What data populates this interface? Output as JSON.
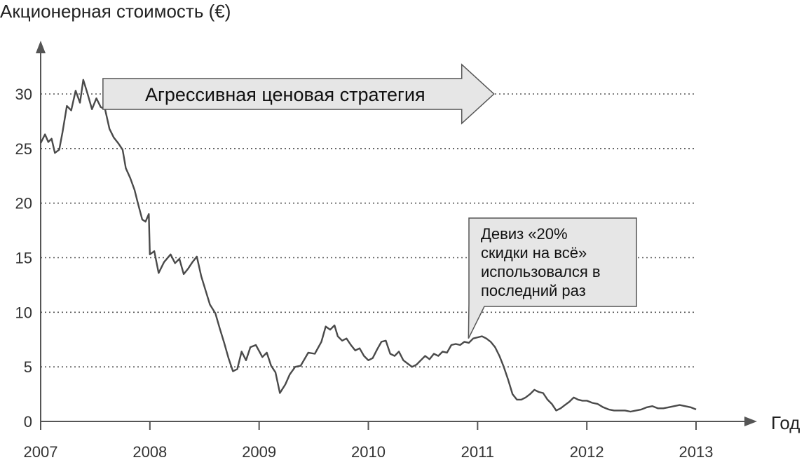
{
  "chart_data": {
    "type": "line",
    "ylabel": "Акционерная стоимость (€)",
    "xlabel": "Год",
    "xlim": [
      2007,
      2013
    ],
    "ylim": [
      0,
      30
    ],
    "y_ticks": [
      0,
      5,
      10,
      15,
      20,
      25,
      30
    ],
    "x_ticks": [
      2007,
      2008,
      2009,
      2010,
      2011,
      2012,
      2013
    ],
    "grid": "horizontal-dotted",
    "series": [
      {
        "values": [
          [
            2007.0,
            25.5
          ],
          [
            2007.04,
            26.3
          ],
          [
            2007.07,
            25.6
          ],
          [
            2007.1,
            25.9
          ],
          [
            2007.13,
            24.6
          ],
          [
            2007.17,
            24.9
          ],
          [
            2007.2,
            26.5
          ],
          [
            2007.24,
            28.9
          ],
          [
            2007.28,
            28.5
          ],
          [
            2007.32,
            30.3
          ],
          [
            2007.36,
            29.2
          ],
          [
            2007.39,
            31.3
          ],
          [
            2007.43,
            30.0
          ],
          [
            2007.47,
            28.6
          ],
          [
            2007.51,
            29.6
          ],
          [
            2007.55,
            28.8
          ],
          [
            2007.59,
            28.6
          ],
          [
            2007.63,
            26.8
          ],
          [
            2007.67,
            26.0
          ],
          [
            2007.71,
            25.5
          ],
          [
            2007.75,
            24.9
          ],
          [
            2007.78,
            23.2
          ],
          [
            2007.82,
            22.3
          ],
          [
            2007.86,
            21.2
          ],
          [
            2007.89,
            20.0
          ],
          [
            2007.93,
            18.5
          ],
          [
            2007.96,
            18.3
          ],
          [
            2007.99,
            19.0
          ],
          [
            2008.0,
            15.3
          ],
          [
            2008.04,
            15.6
          ],
          [
            2008.08,
            13.6
          ],
          [
            2008.13,
            14.6
          ],
          [
            2008.19,
            15.3
          ],
          [
            2008.23,
            14.5
          ],
          [
            2008.27,
            14.9
          ],
          [
            2008.31,
            13.5
          ],
          [
            2008.35,
            14.0
          ],
          [
            2008.39,
            14.6
          ],
          [
            2008.43,
            15.1
          ],
          [
            2008.47,
            13.3
          ],
          [
            2008.51,
            12.0
          ],
          [
            2008.55,
            10.7
          ],
          [
            2008.6,
            9.9
          ],
          [
            2008.64,
            8.5
          ],
          [
            2008.68,
            7.2
          ],
          [
            2008.72,
            5.8
          ],
          [
            2008.76,
            4.6
          ],
          [
            2008.8,
            4.8
          ],
          [
            2008.84,
            6.4
          ],
          [
            2008.88,
            5.6
          ],
          [
            2008.92,
            6.8
          ],
          [
            2008.97,
            7.0
          ],
          [
            2009.03,
            5.9
          ],
          [
            2009.07,
            6.3
          ],
          [
            2009.11,
            5.1
          ],
          [
            2009.15,
            4.5
          ],
          [
            2009.19,
            2.6
          ],
          [
            2009.24,
            3.4
          ],
          [
            2009.28,
            4.3
          ],
          [
            2009.33,
            5.0
          ],
          [
            2009.38,
            5.1
          ],
          [
            2009.45,
            6.3
          ],
          [
            2009.51,
            6.2
          ],
          [
            2009.57,
            7.3
          ],
          [
            2009.61,
            8.7
          ],
          [
            2009.65,
            8.4
          ],
          [
            2009.69,
            8.8
          ],
          [
            2009.72,
            7.8
          ],
          [
            2009.76,
            7.4
          ],
          [
            2009.8,
            7.6
          ],
          [
            2009.84,
            7.0
          ],
          [
            2009.88,
            6.5
          ],
          [
            2009.92,
            6.7
          ],
          [
            2009.96,
            6.0
          ],
          [
            2010.0,
            5.6
          ],
          [
            2010.04,
            5.8
          ],
          [
            2010.08,
            6.6
          ],
          [
            2010.12,
            7.3
          ],
          [
            2010.16,
            7.4
          ],
          [
            2010.2,
            6.2
          ],
          [
            2010.24,
            6.0
          ],
          [
            2010.28,
            6.4
          ],
          [
            2010.32,
            5.6
          ],
          [
            2010.36,
            5.3
          ],
          [
            2010.4,
            5.0
          ],
          [
            2010.44,
            5.2
          ],
          [
            2010.48,
            5.6
          ],
          [
            2010.52,
            6.0
          ],
          [
            2010.56,
            5.7
          ],
          [
            2010.6,
            6.2
          ],
          [
            2010.64,
            6.0
          ],
          [
            2010.68,
            6.4
          ],
          [
            2010.72,
            6.3
          ],
          [
            2010.76,
            7.0
          ],
          [
            2010.8,
            7.1
          ],
          [
            2010.84,
            7.0
          ],
          [
            2010.88,
            7.3
          ],
          [
            2010.92,
            7.2
          ],
          [
            2010.96,
            7.6
          ],
          [
            2011.0,
            7.7
          ],
          [
            2011.04,
            7.8
          ],
          [
            2011.08,
            7.6
          ],
          [
            2011.12,
            7.3
          ],
          [
            2011.16,
            6.8
          ],
          [
            2011.2,
            6.0
          ],
          [
            2011.24,
            5.0
          ],
          [
            2011.28,
            3.8
          ],
          [
            2011.32,
            2.5
          ],
          [
            2011.36,
            2.0
          ],
          [
            2011.4,
            2.0
          ],
          [
            2011.44,
            2.2
          ],
          [
            2011.48,
            2.5
          ],
          [
            2011.52,
            2.9
          ],
          [
            2011.56,
            2.7
          ],
          [
            2011.6,
            2.6
          ],
          [
            2011.64,
            2.0
          ],
          [
            2011.68,
            1.6
          ],
          [
            2011.72,
            1.0
          ],
          [
            2011.76,
            1.2
          ],
          [
            2011.8,
            1.5
          ],
          [
            2011.84,
            1.8
          ],
          [
            2011.88,
            2.2
          ],
          [
            2011.92,
            2.0
          ],
          [
            2011.96,
            1.9
          ],
          [
            2012.0,
            1.9
          ],
          [
            2012.05,
            1.7
          ],
          [
            2012.1,
            1.6
          ],
          [
            2012.15,
            1.3
          ],
          [
            2012.2,
            1.1
          ],
          [
            2012.25,
            1.0
          ],
          [
            2012.3,
            1.0
          ],
          [
            2012.35,
            1.0
          ],
          [
            2012.4,
            0.9
          ],
          [
            2012.45,
            1.0
          ],
          [
            2012.5,
            1.1
          ],
          [
            2012.55,
            1.3
          ],
          [
            2012.6,
            1.4
          ],
          [
            2012.65,
            1.2
          ],
          [
            2012.7,
            1.2
          ],
          [
            2012.75,
            1.3
          ],
          [
            2012.8,
            1.4
          ],
          [
            2012.85,
            1.5
          ],
          [
            2012.9,
            1.4
          ],
          [
            2012.95,
            1.3
          ],
          [
            2013.0,
            1.1
          ]
        ]
      }
    ],
    "annotations": {
      "arrow_label": "Агрессивная ценовая стратегия",
      "arrow_range": [
        2007.75,
        2011.15
      ],
      "arrow_y": 30,
      "callout_lines": [
        "Девиз «20%",
        "скидки на всё»",
        "использовался в",
        "последний раз"
      ],
      "callout_target": [
        2011.0,
        8.5
      ]
    }
  },
  "colors": {
    "line": "#4a4a4a",
    "grid": "#555555",
    "axis": "#555555",
    "arrow_fill": "#e6e6e6",
    "callout_fill": "#e6e6e6"
  }
}
